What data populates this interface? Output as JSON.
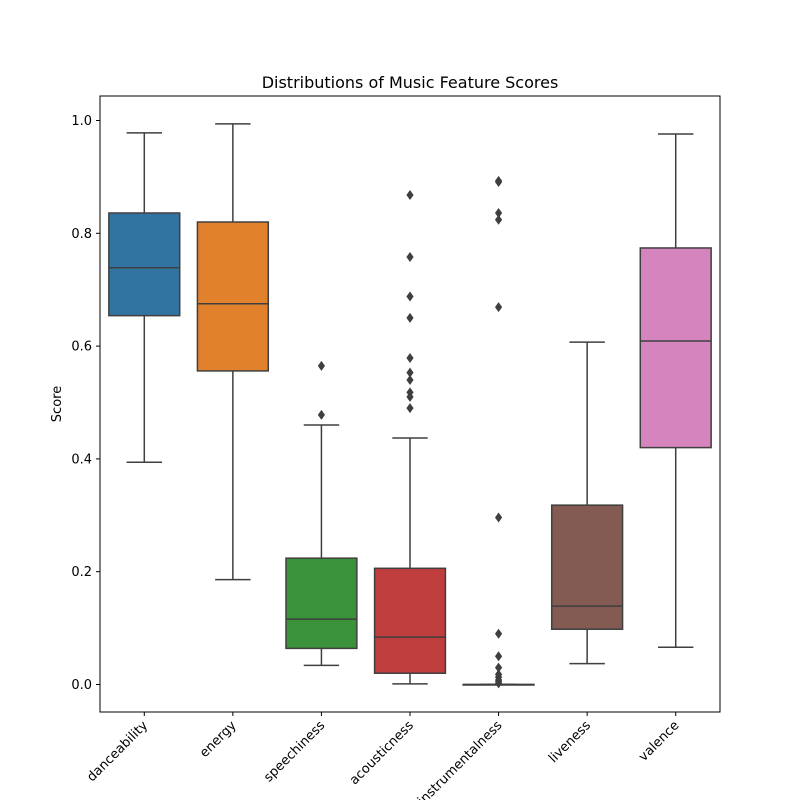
{
  "chart_data": {
    "type": "box",
    "title": "Distributions of Music Feature Scores",
    "xlabel": "",
    "ylabel": "Score",
    "ylim": [
      -0.05,
      1.04
    ],
    "yticks": [
      "0.0",
      "0.2",
      "0.4",
      "0.6",
      "0.8",
      "1.0"
    ],
    "ytick_values": [
      0.0,
      0.2,
      0.4,
      0.6,
      0.8,
      1.0
    ],
    "grid": false,
    "categories": [
      "danceability",
      "energy",
      "speechiness",
      "acousticness",
      "instrumentalness",
      "liveness",
      "valence"
    ],
    "series": [
      {
        "category": "danceability",
        "color": "#3274a1",
        "whisker_low": 0.394,
        "q1": 0.654,
        "median": 0.739,
        "q3": 0.836,
        "whisker_high": 0.978,
        "outliers": []
      },
      {
        "category": "energy",
        "color": "#e1812c",
        "whisker_low": 0.186,
        "q1": 0.556,
        "median": 0.675,
        "q3": 0.82,
        "whisker_high": 0.994,
        "outliers": []
      },
      {
        "category": "speechiness",
        "color": "#3a923a",
        "whisker_low": 0.034,
        "q1": 0.064,
        "median": 0.116,
        "q3": 0.224,
        "whisker_high": 0.46,
        "outliers": [
          0.478,
          0.565
        ]
      },
      {
        "category": "acousticness",
        "color": "#c03d3e",
        "whisker_low": 0.001,
        "q1": 0.02,
        "median": 0.084,
        "q3": 0.206,
        "whisker_high": 0.437,
        "outliers": [
          0.49,
          0.51,
          0.518,
          0.54,
          0.553,
          0.579,
          0.65,
          0.688,
          0.758,
          0.868
        ]
      },
      {
        "category": "instrumentalness",
        "color": "#9372b2",
        "whisker_low": 0.0,
        "q1": 0.0,
        "median": 0.0,
        "q3": 0.0,
        "whisker_high": 0.0,
        "outliers": [
          0.002,
          0.005,
          0.008,
          0.013,
          0.018,
          0.03,
          0.05,
          0.09,
          0.296,
          0.669,
          0.824,
          0.836,
          0.891,
          0.893
        ]
      },
      {
        "category": "liveness",
        "color": "#845b53",
        "whisker_low": 0.037,
        "q1": 0.098,
        "median": 0.139,
        "q3": 0.318,
        "whisker_high": 0.607,
        "outliers": []
      },
      {
        "category": "valence",
        "color": "#d684bd",
        "whisker_low": 0.066,
        "q1": 0.42,
        "median": 0.609,
        "q3": 0.774,
        "whisker_high": 0.976,
        "outliers": []
      }
    ]
  }
}
